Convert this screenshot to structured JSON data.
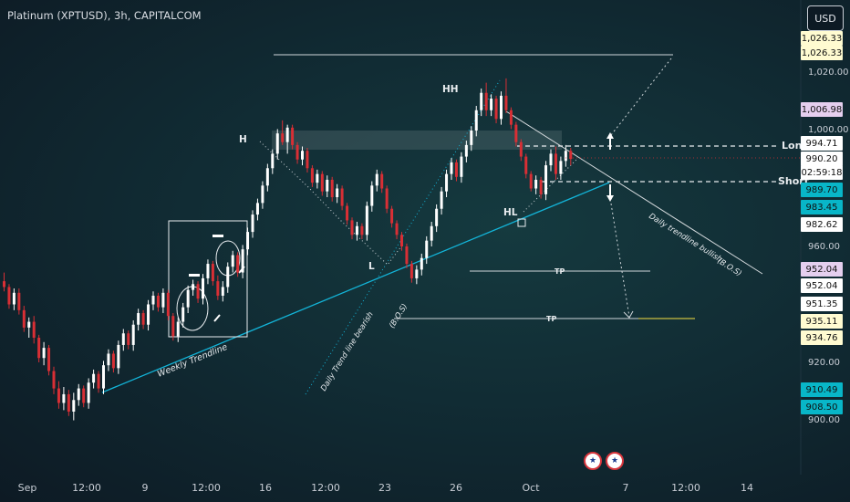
{
  "header": {
    "title": "Platinum (XPTUSD), 3h, CAPITALCOM",
    "currency_button": "USD"
  },
  "price_labels": [
    {
      "value": "1,026.33",
      "bg": "#fffbd1",
      "fg": "#111111"
    },
    {
      "value": "1,026.33",
      "bg": "#fffbd1",
      "fg": "#111111"
    },
    {
      "value": "1,006.98",
      "bg": "#e5cfef",
      "fg": "#111111"
    },
    {
      "value": "994.71",
      "bg": "#ffffff",
      "fg": "#111111"
    },
    {
      "value": "990.20",
      "bg": "#ffffff",
      "fg": "#111111"
    },
    {
      "value": "02:59:18",
      "bg": "#ffffff",
      "fg": "#111111"
    },
    {
      "value": "989.70",
      "bg": "#08b6c8",
      "fg": "#111111"
    },
    {
      "value": "983.45",
      "bg": "#08b6c8",
      "fg": "#111111"
    },
    {
      "value": "982.62",
      "bg": "#ffffff",
      "fg": "#111111"
    },
    {
      "value": "952.04",
      "bg": "#e5cfef",
      "fg": "#111111"
    },
    {
      "value": "952.04",
      "bg": "#ffffff",
      "fg": "#111111"
    },
    {
      "value": "951.35",
      "bg": "#ffffff",
      "fg": "#111111"
    },
    {
      "value": "935.11",
      "bg": "#fffbd1",
      "fg": "#111111"
    },
    {
      "value": "934.76",
      "bg": "#fffbd1",
      "fg": "#111111"
    },
    {
      "value": "910.49",
      "bg": "#08b6c8",
      "fg": "#111111"
    },
    {
      "value": "908.50",
      "bg": "#08b6c8",
      "fg": "#111111"
    }
  ],
  "chart_data": {
    "type": "candlestick",
    "title": "Platinum (XPTUSD), 3h, CAPITALCOM",
    "y_ticks": [
      "1,020.00",
      "1,000.00",
      "960.00",
      "920.00",
      "900.00"
    ],
    "ylim": [
      895,
      1036
    ],
    "x_ticks": [
      "Sep",
      "12:00",
      "9",
      "12:00",
      "16",
      "12:00",
      "23",
      "26",
      "Oct",
      "7",
      "12:00",
      "14"
    ],
    "colors": {
      "up": "#ffffff",
      "down": "#d82f35",
      "trend_cyan": "#13b4d8",
      "tp_yellow": "#f5e042"
    },
    "candles": [
      [
        948.0,
        951.0,
        944.5,
        946.0
      ],
      [
        946.0,
        947.0,
        938.5,
        940.0
      ],
      [
        940.0,
        945.5,
        938.0,
        944.0
      ],
      [
        944.0,
        945.5,
        936.5,
        938.0
      ],
      [
        938.0,
        939.5,
        930.5,
        932.0
      ],
      [
        932.0,
        935.5,
        928.5,
        934.0
      ],
      [
        934.0,
        936.0,
        926.5,
        928.5
      ],
      [
        928.5,
        929.5,
        920.0,
        921.5
      ],
      [
        921.5,
        927.0,
        919.0,
        925.0
      ],
      [
        925.0,
        926.0,
        915.5,
        917.0
      ],
      [
        917.0,
        918.5,
        909.0,
        911.0
      ],
      [
        911.0,
        913.5,
        904.0,
        906.0
      ],
      [
        906.0,
        911.5,
        903.5,
        909.0
      ],
      [
        909.0,
        910.5,
        901.5,
        903.0
      ],
      [
        903.0,
        909.5,
        900.0,
        907.0
      ],
      [
        907.0,
        912.5,
        905.0,
        911.0
      ],
      [
        911.0,
        912.0,
        904.5,
        906.0
      ],
      [
        906.0,
        914.5,
        904.0,
        913.0
      ],
      [
        913.0,
        917.5,
        911.0,
        916.0
      ],
      [
        916.0,
        917.0,
        909.5,
        911.0
      ],
      [
        911.0,
        920.5,
        909.0,
        919.0
      ],
      [
        919.0,
        924.5,
        917.0,
        923.0
      ],
      [
        923.0,
        924.0,
        916.5,
        918.0
      ],
      [
        918.0,
        927.5,
        916.0,
        926.0
      ],
      [
        926.0,
        931.5,
        924.0,
        930.0
      ],
      [
        930.0,
        931.0,
        924.5,
        926.0
      ],
      [
        926.0,
        934.5,
        924.0,
        933.0
      ],
      [
        933.0,
        938.5,
        931.0,
        937.0
      ],
      [
        937.0,
        938.0,
        931.5,
        933.0
      ],
      [
        933.0,
        941.5,
        931.0,
        940.0
      ],
      [
        940.0,
        944.5,
        938.0,
        943.0
      ],
      [
        943.0,
        944.0,
        937.5,
        939.0
      ],
      [
        939.0,
        945.5,
        937.0,
        944.0
      ],
      [
        944.0,
        945.0,
        934.5,
        936.0
      ],
      [
        936.0,
        937.0,
        927.5,
        929.0
      ],
      [
        929.0,
        935.5,
        927.0,
        934.0
      ],
      [
        934.0,
        940.5,
        932.0,
        939.0
      ],
      [
        939.0,
        946.5,
        937.0,
        945.0
      ],
      [
        945.0,
        948.5,
        943.0,
        947.0
      ],
      [
        947.0,
        948.0,
        940.5,
        942.0
      ],
      [
        942.0,
        950.5,
        940.0,
        949.0
      ],
      [
        949.0,
        955.5,
        947.0,
        954.0
      ],
      [
        954.0,
        955.0,
        946.5,
        948.0
      ],
      [
        948.0,
        950.0,
        941.5,
        943.0
      ],
      [
        943.0,
        948.0,
        941.0,
        946.0
      ],
      [
        946.0,
        954.5,
        944.0,
        953.0
      ],
      [
        953.0,
        958.5,
        951.0,
        957.0
      ],
      [
        957.0,
        958.0,
        949.5,
        951.0
      ],
      [
        951.0,
        960.5,
        949.0,
        959.0
      ],
      [
        959.0,
        966.5,
        957.0,
        965.0
      ],
      [
        965.0,
        972.5,
        963.0,
        971.0
      ],
      [
        971.0,
        976.5,
        969.0,
        975.0
      ],
      [
        975.0,
        982.5,
        973.0,
        981.0
      ],
      [
        981.0,
        988.5,
        979.0,
        987.0
      ],
      [
        987.0,
        993.5,
        985.0,
        992.0
      ],
      [
        992.0,
        1000.5,
        990.0,
        999.0
      ],
      [
        999.0,
        1003.5,
        995.0,
        996.0
      ],
      [
        996.0,
        1002.0,
        992.0,
        1001.0
      ],
      [
        1001.0,
        1002.0,
        993.5,
        995.0
      ],
      [
        995.0,
        996.0,
        988.5,
        990.0
      ],
      [
        990.0,
        994.5,
        988.0,
        993.0
      ],
      [
        993.0,
        994.0,
        985.5,
        987.0
      ],
      [
        987.0,
        988.0,
        980.5,
        982.0
      ],
      [
        982.0,
        986.5,
        980.0,
        985.0
      ],
      [
        985.0,
        986.0,
        977.5,
        979.0
      ],
      [
        979.0,
        984.5,
        977.0,
        983.0
      ],
      [
        983.0,
        984.0,
        975.5,
        977.0
      ],
      [
        977.0,
        981.5,
        975.0,
        980.0
      ],
      [
        980.0,
        981.0,
        972.5,
        974.0
      ],
      [
        974.0,
        975.0,
        967.5,
        969.0
      ],
      [
        969.0,
        970.0,
        962.5,
        964.0
      ],
      [
        964.0,
        968.5,
        962.0,
        967.0
      ],
      [
        967.0,
        968.0,
        962.5,
        964.0
      ],
      [
        964.0,
        975.5,
        962.0,
        974.0
      ],
      [
        974.0,
        982.5,
        972.0,
        981.0
      ],
      [
        981.0,
        986.5,
        979.0,
        985.0
      ],
      [
        985.0,
        986.0,
        978.5,
        980.0
      ],
      [
        980.0,
        981.0,
        971.5,
        973.0
      ],
      [
        973.0,
        974.0,
        966.5,
        968.0
      ],
      [
        968.0,
        969.0,
        962.5,
        964.0
      ],
      [
        964.0,
        965.0,
        958.5,
        960.0
      ],
      [
        960.0,
        961.0,
        952.5,
        954.0
      ],
      [
        954.0,
        955.0,
        947.5,
        949.0
      ],
      [
        949.0,
        953.5,
        947.0,
        952.0
      ],
      [
        952.0,
        957.5,
        950.0,
        956.0
      ],
      [
        956.0,
        963.5,
        954.0,
        962.0
      ],
      [
        962.0,
        968.5,
        960.0,
        967.0
      ],
      [
        967.0,
        974.5,
        965.0,
        973.0
      ],
      [
        973.0,
        980.5,
        971.0,
        979.0
      ],
      [
        979.0,
        986.5,
        977.0,
        985.0
      ],
      [
        985.0,
        990.5,
        983.0,
        989.0
      ],
      [
        989.0,
        990.0,
        982.5,
        984.0
      ],
      [
        984.0,
        992.5,
        982.0,
        991.0
      ],
      [
        991.0,
        996.5,
        989.0,
        995.0
      ],
      [
        995.0,
        1001.5,
        993.0,
        1000.0
      ],
      [
        1000.0,
        1008.5,
        998.0,
        1007.0
      ],
      [
        1007.0,
        1014.5,
        1005.0,
        1013.0
      ],
      [
        1013.0,
        1016.5,
        1005.0,
        1007.0
      ],
      [
        1007.0,
        1012.5,
        1005.0,
        1011.0
      ],
      [
        1011.0,
        1012.0,
        1002.5,
        1004.0
      ],
      [
        1004.0,
        1013.5,
        1002.0,
        1012.0
      ],
      [
        1012.0,
        1018.0,
        1006.0,
        1007.0
      ],
      [
        1007.0,
        1008.0,
        1000.5,
        1002.0
      ],
      [
        1002.0,
        1003.0,
        994.5,
        996.0
      ],
      [
        996.0,
        997.0,
        989.5,
        991.0
      ],
      [
        991.0,
        992.0,
        983.5,
        985.0
      ],
      [
        985.0,
        986.0,
        979.0,
        980.0
      ],
      [
        980.0,
        984.5,
        978.0,
        983.0
      ],
      [
        983.0,
        984.0,
        976.5,
        978.0
      ],
      [
        978.0,
        989.5,
        976.0,
        988.0
      ],
      [
        988.0,
        993.5,
        986.0,
        992.0
      ],
      [
        992.0,
        994.5,
        983.0,
        985.0
      ],
      [
        985.0,
        991.0,
        983.0,
        989.5
      ],
      [
        989.5,
        995.0,
        987.5,
        993.0
      ],
      [
        993.0,
        994.0,
        988.0,
        990.2
      ]
    ]
  },
  "annotations": {
    "pivot_h": "H",
    "pivot_hh": "HH",
    "pivot_l": "L",
    "pivot_hl": "HL",
    "weekly_trendline": "Weekly Trendline",
    "daily_bearish": "Daily Trend line bearish",
    "daily_bullish": "Daily trendline bullish",
    "bos_bearish": "(B.O.S)",
    "bos_bullish": "(B.O.S)",
    "long_label": "Long",
    "short_label": "Short",
    "tp_upper": "TP",
    "tp_lower": "TP"
  }
}
